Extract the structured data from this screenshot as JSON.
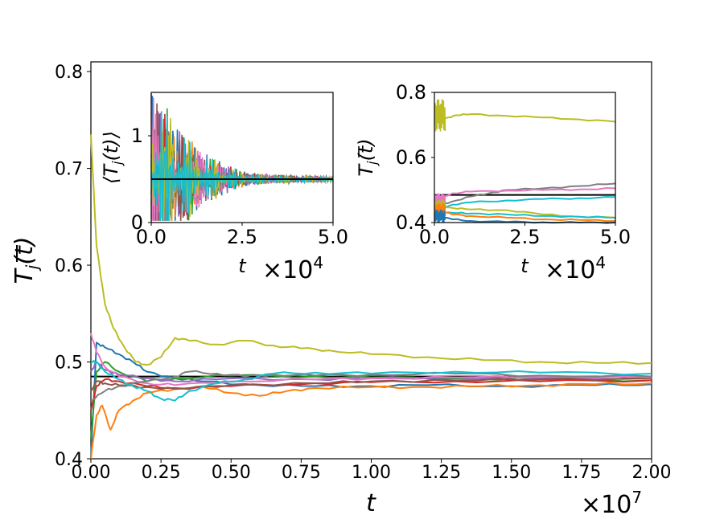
{
  "chart_data": [
    {
      "id": "main",
      "type": "line",
      "xlabel": "t",
      "ylabel": "T̅_j(t)",
      "x_multiplier": "×10^7",
      "xlim": [
        0,
        2.0
      ],
      "ylim": [
        0.4,
        0.81
      ],
      "xticks": [
        "0.00",
        "0.25",
        "0.50",
        "0.75",
        "1.00",
        "1.25",
        "1.50",
        "1.75",
        "2.00"
      ],
      "yticks": [
        "0.4",
        "0.5",
        "0.6",
        "0.7",
        "0.8"
      ],
      "reference_line": {
        "y": 0.485,
        "color": "#000000"
      },
      "series": [
        {
          "name": "olive",
          "color": "#bcbd22",
          "x": [
            0,
            0.02,
            0.05,
            0.08,
            0.12,
            0.16,
            0.2,
            0.25,
            0.3,
            0.35,
            0.45,
            0.55,
            0.65,
            0.75,
            0.85,
            1.0,
            1.2,
            1.4,
            1.6,
            1.8,
            2.0
          ],
          "y": [
            0.735,
            0.62,
            0.56,
            0.535,
            0.515,
            0.5,
            0.497,
            0.505,
            0.525,
            0.522,
            0.518,
            0.522,
            0.517,
            0.514,
            0.512,
            0.508,
            0.505,
            0.502,
            0.5,
            0.499,
            0.499
          ]
        },
        {
          "name": "blue",
          "color": "#1f77b4",
          "x": [
            0,
            0.02,
            0.05,
            0.1,
            0.15,
            0.2,
            0.3,
            0.4,
            0.6,
            0.8,
            1.0,
            1.2,
            1.5,
            1.8,
            2.0
          ],
          "y": [
            0.4,
            0.52,
            0.515,
            0.508,
            0.5,
            0.49,
            0.483,
            0.48,
            0.476,
            0.475,
            0.475,
            0.476,
            0.475,
            0.476,
            0.477
          ]
        },
        {
          "name": "orange",
          "color": "#ff7f0e",
          "x": [
            0,
            0.02,
            0.04,
            0.07,
            0.1,
            0.15,
            0.2,
            0.3,
            0.4,
            0.5,
            0.6,
            0.7,
            0.8,
            1.0,
            1.2,
            1.4,
            1.6,
            1.8,
            2.0
          ],
          "y": [
            0.4,
            0.445,
            0.455,
            0.43,
            0.45,
            0.46,
            0.468,
            0.472,
            0.474,
            0.468,
            0.465,
            0.47,
            0.473,
            0.474,
            0.474,
            0.475,
            0.476,
            0.477,
            0.478
          ]
        },
        {
          "name": "green",
          "color": "#2ca02c",
          "x": [
            0,
            0.02,
            0.05,
            0.1,
            0.2,
            0.3,
            0.5,
            0.8,
            1.0,
            1.3,
            1.6,
            2.0
          ],
          "y": [
            0.42,
            0.49,
            0.5,
            0.49,
            0.48,
            0.483,
            0.486,
            0.485,
            0.484,
            0.483,
            0.482,
            0.481
          ]
        },
        {
          "name": "red",
          "color": "#d62728",
          "x": [
            0,
            0.02,
            0.05,
            0.1,
            0.2,
            0.3,
            0.5,
            0.8,
            1.0,
            1.3,
            1.6,
            2.0
          ],
          "y": [
            0.45,
            0.475,
            0.482,
            0.48,
            0.475,
            0.473,
            0.475,
            0.478,
            0.479,
            0.48,
            0.48,
            0.481
          ]
        },
        {
          "name": "purple",
          "color": "#9467bd",
          "x": [
            0,
            0.02,
            0.05,
            0.1,
            0.2,
            0.3,
            0.5,
            0.8,
            1.0,
            1.3,
            1.6,
            2.0
          ],
          "y": [
            0.49,
            0.5,
            0.492,
            0.487,
            0.483,
            0.48,
            0.483,
            0.482,
            0.483,
            0.484,
            0.483,
            0.483
          ]
        },
        {
          "name": "brown",
          "color": "#8c564b",
          "x": [
            0,
            0.02,
            0.05,
            0.1,
            0.2,
            0.3,
            0.5,
            0.8,
            1.0,
            1.3,
            1.6,
            2.0
          ],
          "y": [
            0.47,
            0.48,
            0.478,
            0.476,
            0.474,
            0.472,
            0.476,
            0.478,
            0.48,
            0.481,
            0.482,
            0.483
          ]
        },
        {
          "name": "pink",
          "color": "#e377c2",
          "x": [
            0,
            0.02,
            0.05,
            0.1,
            0.2,
            0.3,
            0.5,
            0.8,
            1.0,
            1.3,
            1.6,
            2.0
          ],
          "y": [
            0.53,
            0.51,
            0.495,
            0.485,
            0.478,
            0.476,
            0.48,
            0.482,
            0.483,
            0.484,
            0.485,
            0.484
          ]
        },
        {
          "name": "gray",
          "color": "#7f7f7f",
          "x": [
            0,
            0.05,
            0.1,
            0.2,
            0.3,
            0.35,
            0.45,
            0.55,
            0.65,
            0.8,
            1.0,
            1.3,
            1.6,
            2.0
          ],
          "y": [
            0.46,
            0.47,
            0.475,
            0.48,
            0.485,
            0.49,
            0.488,
            0.485,
            0.487,
            0.486,
            0.487,
            0.488,
            0.486,
            0.485
          ]
        },
        {
          "name": "cyan",
          "color": "#17becf",
          "x": [
            0,
            0.02,
            0.05,
            0.1,
            0.15,
            0.2,
            0.25,
            0.3,
            0.35,
            0.45,
            0.55,
            0.65,
            0.8,
            1.0,
            1.3,
            1.6,
            2.0
          ],
          "y": [
            0.5,
            0.5,
            0.49,
            0.482,
            0.475,
            0.47,
            0.462,
            0.46,
            0.47,
            0.478,
            0.482,
            0.488,
            0.489,
            0.488,
            0.49,
            0.489,
            0.488
          ]
        }
      ]
    },
    {
      "id": "inset-left",
      "type": "line",
      "xlabel": "t",
      "ylabel": "⟨T_j(t)⟩",
      "x_multiplier": "×10^4",
      "xlim": [
        0,
        5.0
      ],
      "ylim": [
        0,
        1.5
      ],
      "xticks": [
        "0.0",
        "2.5",
        "5.0"
      ],
      "yticks": [
        "0",
        "1"
      ],
      "reference_line": {
        "y": 0.5,
        "color": "#000000"
      },
      "description": "many oscillating series decaying from wide spread (0 to 1.5) toward 0.5 by t≈3",
      "series_colors": [
        "#1f77b4",
        "#ff7f0e",
        "#2ca02c",
        "#d62728",
        "#9467bd",
        "#8c564b",
        "#e377c2",
        "#7f7f7f",
        "#bcbd22",
        "#17becf"
      ],
      "envelope": {
        "t": [
          0,
          0.5,
          1.0,
          1.5,
          2.0,
          2.5,
          3.0,
          4.0,
          5.0
        ],
        "half_width": [
          1.0,
          0.8,
          0.5,
          0.3,
          0.18,
          0.1,
          0.06,
          0.04,
          0.03
        ]
      }
    },
    {
      "id": "inset-right",
      "type": "line",
      "xlabel": "t",
      "ylabel": "T̅_j(t)",
      "x_multiplier": "×10^4",
      "xlim": [
        0,
        5.0
      ],
      "ylim": [
        0.4,
        0.8
      ],
      "xticks": [
        "0.0",
        "2.5",
        "5.0"
      ],
      "yticks": [
        "0.4",
        "0.6",
        "0.8"
      ],
      "reference_line": {
        "y": 0.485,
        "color": "#000000"
      },
      "series": [
        {
          "name": "olive",
          "color": "#bcbd22",
          "x": [
            0,
            0.3,
            0.6,
            1.0,
            2.0,
            3.0,
            4.0,
            5.0
          ],
          "y": [
            0.73,
            0.72,
            0.73,
            0.733,
            0.728,
            0.723,
            0.717,
            0.71
          ]
        },
        {
          "name": "gray",
          "color": "#7f7f7f",
          "x": [
            0,
            0.5,
            1.0,
            1.5,
            2.0,
            3.0,
            4.0,
            5.0
          ],
          "y": [
            0.45,
            0.465,
            0.48,
            0.49,
            0.5,
            0.505,
            0.512,
            0.52
          ]
        },
        {
          "name": "pink",
          "color": "#e377c2",
          "x": [
            0,
            0.5,
            1.0,
            2.0,
            3.0,
            4.0,
            5.0
          ],
          "y": [
            0.47,
            0.49,
            0.495,
            0.498,
            0.5,
            0.502,
            0.505
          ]
        },
        {
          "name": "cyan",
          "color": "#17becf",
          "x": [
            0,
            0.5,
            1.0,
            2.0,
            3.0,
            4.0,
            5.0
          ],
          "y": [
            0.44,
            0.455,
            0.462,
            0.468,
            0.472,
            0.475,
            0.478
          ]
        },
        {
          "name": "olive2",
          "color": "#bcbd22",
          "x": [
            0,
            0.5,
            1.0,
            2.0,
            3.0,
            4.0,
            5.0
          ],
          "y": [
            0.45,
            0.445,
            0.44,
            0.438,
            0.425,
            0.418,
            0.415
          ]
        },
        {
          "name": "cyan2",
          "color": "#17becf",
          "x": [
            0,
            0.5,
            1.0,
            2.0,
            3.0,
            4.0,
            5.0
          ],
          "y": [
            0.43,
            0.43,
            0.428,
            0.425,
            0.42,
            0.418,
            0.415
          ]
        },
        {
          "name": "orange",
          "color": "#ff7f0e",
          "x": [
            0,
            0.5,
            1.0,
            2.0,
            3.0,
            4.0,
            5.0
          ],
          "y": [
            0.44,
            0.425,
            0.42,
            0.415,
            0.41,
            0.408,
            0.405
          ]
        },
        {
          "name": "blue",
          "color": "#1f77b4",
          "x": [
            0,
            0.5,
            1.0,
            2.0,
            3.0,
            4.0,
            5.0
          ],
          "y": [
            0.42,
            0.41,
            0.405,
            0.402,
            0.401,
            0.4,
            0.4
          ]
        }
      ]
    }
  ]
}
